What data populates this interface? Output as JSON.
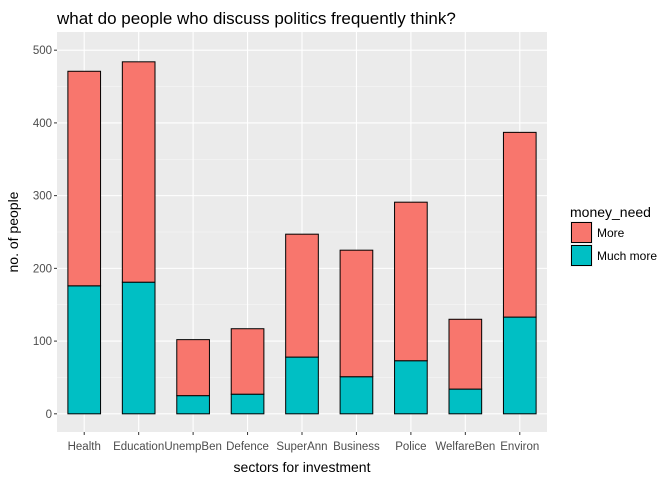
{
  "chart_data": {
    "type": "bar",
    "stacked": true,
    "title": "what do people who discuss politics frequently think?",
    "xlabel": "sectors for investment",
    "ylabel": "no. of people",
    "categories": [
      "Health",
      "Education",
      "UnempBen",
      "Defence",
      "SuperAnn",
      "Business",
      "Police",
      "WelfareBen",
      "Environ"
    ],
    "series": [
      {
        "name": "Much more",
        "color": "#00bfc4",
        "values": [
          176,
          181,
          25,
          27,
          78,
          51,
          73,
          34,
          133
        ]
      },
      {
        "name": "More",
        "color": "#f8766d",
        "values": [
          295,
          303,
          77,
          90,
          169,
          174,
          218,
          96,
          254
        ]
      }
    ],
    "ylim": [
      0,
      500
    ],
    "yticks": [
      0,
      100,
      200,
      300,
      400,
      500
    ],
    "grid": true,
    "legend": {
      "title": "money_need",
      "position": "right",
      "entries": [
        {
          "label": "More",
          "color": "#f8766d"
        },
        {
          "label": "Much more",
          "color": "#00bfc4"
        }
      ]
    }
  }
}
